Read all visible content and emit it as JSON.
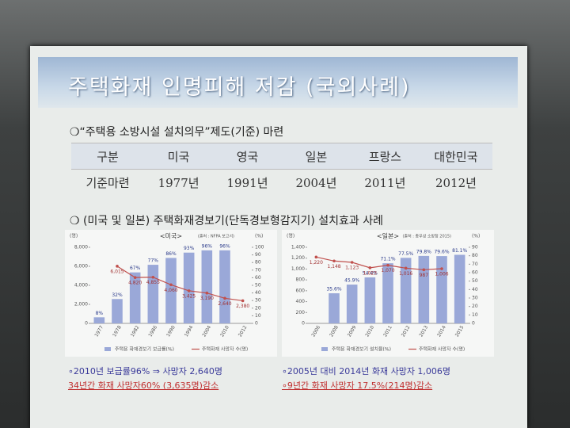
{
  "title": "주택화재 인명피해 저감 (국외사례)",
  "section1": {
    "heading": "❍“주택용 소방시설 설치의무”제도(기준) 마련",
    "table": {
      "header": [
        "구분",
        "미국",
        "영국",
        "일본",
        "프랑스",
        "대한민국"
      ],
      "rows": [
        [
          "기준마련",
          "1977년",
          "1991년",
          "2004년",
          "2011년",
          "2012년"
        ]
      ]
    }
  },
  "section2": {
    "heading": "❍ (미국 및 일본) 주택화재경보기(단독경보형감지기) 설치효과 사례"
  },
  "chart_data": [
    {
      "type": "combo",
      "title": "<미국>",
      "source": "(출처 : NFPA 보고서)",
      "y_unit": "(명)",
      "y2_unit": "(%)",
      "categories": [
        "1977",
        "1978",
        "1982",
        "1986",
        "1990",
        "1994",
        "2004",
        "2010",
        "2012"
      ],
      "ylim": [
        0,
        8000
      ],
      "yticks": [
        0,
        {
          "value": 2000,
          "label": "2,000"
        },
        {
          "value": 4000,
          "label": "4,000"
        },
        {
          "value": 6000,
          "label": "6,000"
        },
        {
          "value": 8000,
          "label": "8,000"
        }
      ],
      "y2lim": [
        0,
        100
      ],
      "y2ticks": [
        0,
        10,
        20,
        30,
        40,
        50,
        60,
        70,
        80,
        90,
        100
      ],
      "series": [
        {
          "name": "주택용 화재경보기 보급률(%)",
          "type": "bar",
          "axis": "y2",
          "color": "#9aa8d8",
          "values": [
            8,
            32,
            67,
            77,
            86,
            93,
            96,
            96,
            null
          ],
          "value_labels": [
            "8%",
            "32%",
            "67%",
            "77%",
            "86%",
            "93%",
            "96%",
            "96%",
            null
          ]
        },
        {
          "name": "주택화재 사망자 수(명)",
          "type": "line",
          "color": "#c0504d",
          "values": [
            null,
            6015,
            4820,
            4855,
            4060,
            3425,
            3190,
            2640,
            2380
          ],
          "value_labels": [
            null,
            "6,015",
            "4,820",
            "4,855",
            "4,060",
            "3,425",
            "3,190",
            "2,640",
            "2,380"
          ]
        }
      ]
    },
    {
      "type": "combo",
      "title": "<일본>",
      "source": "(출처 : 총무성 소방청 2015)",
      "y_unit": "(명)",
      "y2_unit": "(%)",
      "categories": [
        "2006",
        "2008",
        "2009",
        "2010",
        "2011",
        "2012",
        "2013",
        "2014",
        "2015"
      ],
      "ylim": [
        0,
        1400
      ],
      "yticks": [
        0,
        200,
        400,
        600,
        800,
        {
          "value": 1000,
          "label": "1,000"
        },
        {
          "value": 1200,
          "label": "1,200"
        },
        {
          "value": 1400,
          "label": "1,400"
        }
      ],
      "y2lim": [
        0,
        90
      ],
      "y2ticks": [
        0,
        10,
        20,
        30,
        40,
        50,
        60,
        70,
        80,
        90
      ],
      "series": [
        {
          "name": "주택용 화재경보기 설치율(%)",
          "type": "bar",
          "axis": "y2",
          "color": "#9aa8d8",
          "values": [
            null,
            35.6,
            45.9,
            54.4,
            71.1,
            77.5,
            79.8,
            79.6,
            81.1
          ],
          "value_labels": [
            null,
            "35.6%",
            "45.9%",
            "54.4%",
            "71.1%",
            "77.5%",
            "79.8%",
            "79.6%",
            "81.1%"
          ]
        },
        {
          "name": "주택화재 사망자 수(명)",
          "type": "line",
          "color": "#c0504d",
          "values": [
            1220,
            1148,
            1123,
            1023,
            1070,
            1016,
            987,
            1006,
            null
          ],
          "value_labels": [
            "1,220",
            "1,148",
            "1,123",
            "1,023",
            "1,070",
            "1,016",
            "987",
            "1,006",
            null
          ]
        }
      ]
    }
  ],
  "notes": {
    "left": [
      "∘2010년 보급률96% ⇒ 사망자 2,640명",
      "34년간 화재 사망자60% (3,635명)감소"
    ],
    "right": [
      "∘2005년 대비 2014년 화재 사망자 1,006명",
      "∘9년간 화재 사망자 17.5%(214명)감소"
    ]
  }
}
